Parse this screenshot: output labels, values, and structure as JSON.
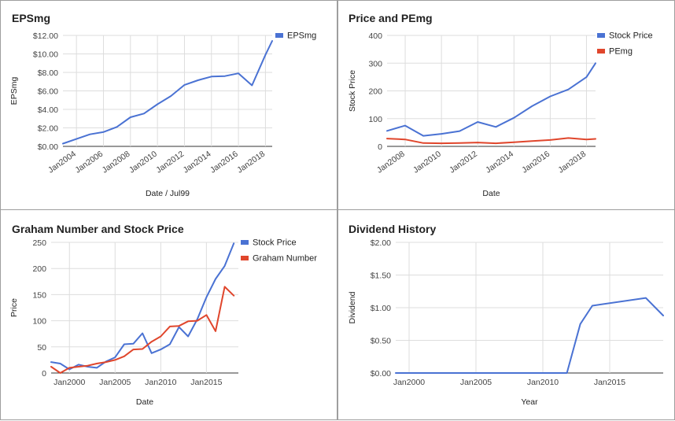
{
  "colors": {
    "blue": "#4a72d3",
    "red": "#e0462c"
  },
  "chart_data": [
    {
      "type": "line",
      "title": "EPSmg",
      "xlabel": "Date / Jul99",
      "ylabel": "EPSmg",
      "x_ticks": [
        "Jan2004",
        "Jan2006",
        "Jan2008",
        "Jan2010",
        "Jan2012",
        "Jan2014",
        "Jan2016",
        "Jan2018"
      ],
      "y_ticks": [
        "$0.00",
        "$2.00",
        "$4.00",
        "$6.00",
        "$8.00",
        "$10.00",
        "$12.00"
      ],
      "xlim": [
        2003.0,
        2018.5
      ],
      "ylim": [
        0,
        12
      ],
      "x_gridlines": [
        2004,
        2006,
        2008,
        2010,
        2012,
        2014,
        2016,
        2018
      ],
      "x_tick_positions": [
        2004,
        2006,
        2008,
        2010,
        2012,
        2014,
        2016,
        2018
      ],
      "tick_rotation": "slanted",
      "legend_position": "top-right",
      "series": [
        {
          "name": "EPSmg",
          "color": "#4a72d3",
          "x": [
            2003.0,
            2004.0,
            2005.0,
            2006.0,
            2007.0,
            2008.0,
            2009.0,
            2010.0,
            2011.0,
            2012.0,
            2013.0,
            2014.0,
            2015.0,
            2016.0,
            2017.0,
            2018.0,
            2018.5
          ],
          "y": [
            0.3,
            0.8,
            1.3,
            1.55,
            2.1,
            3.15,
            3.55,
            4.55,
            5.45,
            6.65,
            7.15,
            7.55,
            7.6,
            7.9,
            6.6,
            9.9,
            11.4
          ]
        }
      ]
    },
    {
      "type": "line",
      "title": "Price and PEmg",
      "xlabel": "Date",
      "ylabel": "Stock Price",
      "x_ticks": [
        "Jan2008",
        "Jan2010",
        "Jan2012",
        "Jan2014",
        "Jan2016",
        "Jan2018"
      ],
      "y_ticks": [
        "0",
        "100",
        "200",
        "300",
        "400"
      ],
      "xlim": [
        2007.0,
        2018.5
      ],
      "ylim": [
        0,
        400
      ],
      "x_gridlines": [
        2008,
        2010,
        2012,
        2014,
        2016,
        2018
      ],
      "x_tick_positions": [
        2008,
        2010,
        2012,
        2014,
        2016,
        2018
      ],
      "tick_rotation": "slanted",
      "legend_position": "top-right",
      "series": [
        {
          "name": "Stock Price",
          "color": "#4a72d3",
          "x": [
            2007.0,
            2008.0,
            2009.0,
            2010.0,
            2011.0,
            2012.0,
            2013.0,
            2014.0,
            2015.0,
            2016.0,
            2017.0,
            2018.0,
            2018.5
          ],
          "y": [
            56,
            75,
            38,
            45,
            55,
            88,
            70,
            103,
            145,
            180,
            205,
            250,
            300
          ]
        },
        {
          "name": "PEmg",
          "color": "#e0462c",
          "x": [
            2007.0,
            2008.0,
            2009.0,
            2010.0,
            2011.0,
            2012.0,
            2013.0,
            2014.0,
            2015.0,
            2016.0,
            2017.0,
            2018.0,
            2018.5
          ],
          "y": [
            28,
            25,
            12,
            11,
            12,
            14,
            11,
            15,
            19,
            23,
            30,
            25,
            27
          ]
        }
      ]
    },
    {
      "type": "line",
      "title": "Graham Number and Stock Price",
      "xlabel": "Date",
      "ylabel": "Price",
      "x_ticks": [
        "Jan2000",
        "Jan2005",
        "Jan2010",
        "Jan2015"
      ],
      "y_ticks": [
        "0",
        "50",
        "100",
        "150",
        "200",
        "250"
      ],
      "xlim": [
        1998.0,
        2018.5
      ],
      "ylim": [
        0,
        250
      ],
      "x_gridlines": [
        2000,
        2005,
        2010,
        2015
      ],
      "x_tick_positions": [
        2000,
        2005,
        2010,
        2015
      ],
      "tick_rotation": "none",
      "legend_position": "top-right",
      "series": [
        {
          "name": "Stock Price",
          "color": "#4a72d3",
          "x": [
            1998.0,
            1999.0,
            2000.0,
            2001.0,
            2002.0,
            2003.0,
            2004.0,
            2005.0,
            2006.0,
            2007.0,
            2008.0,
            2009.0,
            2010.0,
            2011.0,
            2012.0,
            2013.0,
            2014.0,
            2015.0,
            2016.0,
            2017.0,
            2018.0
          ],
          "y": [
            21,
            18,
            7,
            16,
            12,
            10,
            22,
            30,
            55,
            56,
            76,
            38,
            45,
            55,
            88,
            70,
            103,
            145,
            180,
            205,
            248
          ]
        },
        {
          "name": "Graham Number",
          "color": "#e0462c",
          "x": [
            1998.0,
            1999.0,
            2000.0,
            2001.0,
            2002.0,
            2003.0,
            2004.0,
            2005.0,
            2006.0,
            2007.0,
            2008.0,
            2009.0,
            2010.0,
            2011.0,
            2012.0,
            2013.0,
            2014.0,
            2015.0,
            2016.0,
            2017.0,
            2018.0
          ],
          "y": [
            12,
            0,
            10,
            12,
            14,
            18,
            21,
            25,
            32,
            45,
            46,
            60,
            70,
            89,
            90,
            99,
            100,
            111,
            80,
            165,
            148
          ]
        }
      ]
    },
    {
      "type": "line",
      "title": "Dividend History",
      "xlabel": "Year",
      "ylabel": "Dividend",
      "x_ticks": [
        "Jan2000",
        "Jan2005",
        "Jan2010",
        "Jan2015"
      ],
      "y_ticks": [
        "$0.00",
        "$0.50",
        "$1.00",
        "$1.50",
        "$2.00"
      ],
      "xlim": [
        1999.0,
        2019.0
      ],
      "ylim": [
        0,
        2
      ],
      "x_gridlines": [
        2000,
        2005,
        2010,
        2015
      ],
      "x_tick_positions": [
        2000,
        2005,
        2010,
        2015
      ],
      "tick_rotation": "none",
      "legend_position": "none",
      "series": [
        {
          "name": "",
          "color": "#4a72d3",
          "x": [
            1999.0,
            2011.8,
            2012.8,
            2013.7,
            2017.7,
            2019.0
          ],
          "y": [
            0,
            0,
            0.75,
            1.03,
            1.15,
            0.88
          ]
        }
      ]
    }
  ]
}
